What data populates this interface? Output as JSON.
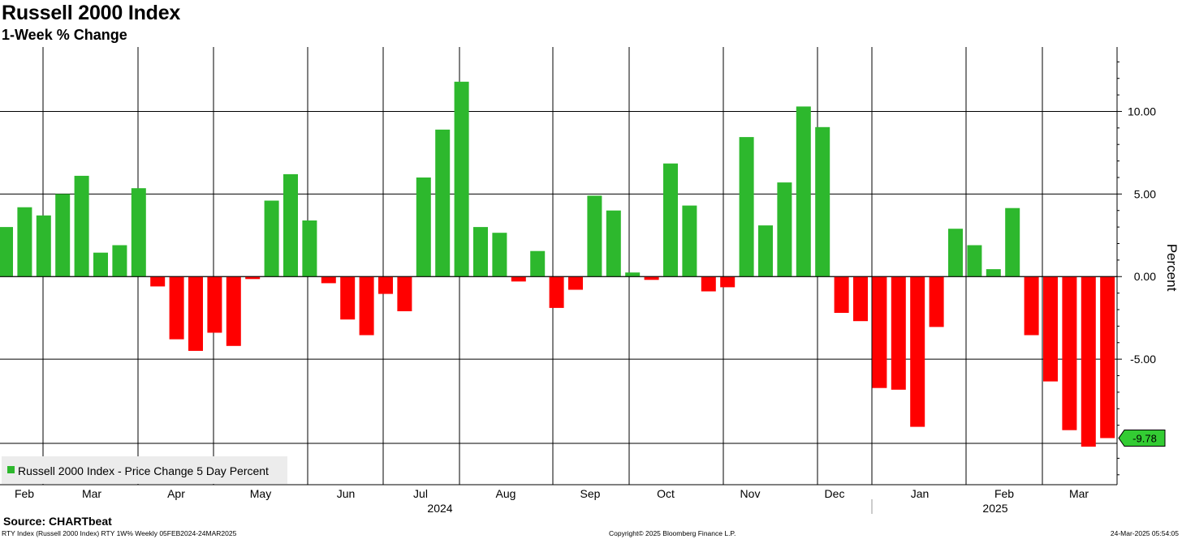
{
  "title": "Russell 2000 Index",
  "subtitle": "1-Week % Change",
  "source": "Source: CHARTbeat",
  "footer": {
    "left": "RTY Index (Russell 2000 Index) RTY 1W% Weekly 05FEB2024-24MAR2025",
    "center": "Copyright© 2025 Bloomberg Finance L.P.",
    "right": "24-Mar-2025 05:54:05"
  },
  "colors": {
    "positive": "#2db82d",
    "negative": "#ff0000",
    "grid": "#000000",
    "last_value_badge": "#33cc33"
  },
  "chart_data": {
    "type": "bar",
    "title": "Russell 2000 Index",
    "subtitle": "1-Week % Change",
    "ylabel": "Percent",
    "ylim": [
      -12.6,
      13.9
    ],
    "y_ticks": [
      10,
      5,
      0,
      -5
    ],
    "y_tick_labels": [
      "10.00",
      "5.00",
      "0.00",
      "-5.00"
    ],
    "grid": true,
    "legend": {
      "position": "bottom-left",
      "entries": [
        "Russell 2000 Index - Price Change 5 Day Percent"
      ]
    },
    "last_value_label": "-9.78",
    "x_month_labels": [
      "Feb",
      "Mar",
      "Apr",
      "May",
      "Jun",
      "Jul",
      "Aug",
      "Sep",
      "Oct",
      "Nov",
      "Dec",
      "Jan",
      "Feb",
      "Mar"
    ],
    "x_year_labels": [
      "2024",
      "2025"
    ],
    "series": [
      {
        "name": "Russell 2000 Index - Price Change 5 Day Percent",
        "x": [
          "2024-02-02",
          "2024-02-09",
          "2024-02-16",
          "2024-02-23",
          "2024-03-01",
          "2024-03-08",
          "2024-03-15",
          "2024-03-22",
          "2024-03-29",
          "2024-04-05",
          "2024-04-12",
          "2024-04-19",
          "2024-04-26",
          "2024-05-03",
          "2024-05-10",
          "2024-05-17",
          "2024-05-24",
          "2024-05-31",
          "2024-06-07",
          "2024-06-14",
          "2024-06-21",
          "2024-06-28",
          "2024-07-05",
          "2024-07-12",
          "2024-07-19",
          "2024-07-26",
          "2024-08-02",
          "2024-08-09",
          "2024-08-16",
          "2024-08-23",
          "2024-08-30",
          "2024-09-06",
          "2024-09-13",
          "2024-09-20",
          "2024-09-27",
          "2024-10-04",
          "2024-10-11",
          "2024-10-18",
          "2024-10-25",
          "2024-11-01",
          "2024-11-08",
          "2024-11-15",
          "2024-11-22",
          "2024-11-29",
          "2024-12-06",
          "2024-12-13",
          "2024-12-20",
          "2024-12-27",
          "2025-01-03",
          "2025-01-10",
          "2025-01-17",
          "2025-01-24",
          "2025-01-31",
          "2025-02-07",
          "2025-02-14",
          "2025-02-21",
          "2025-02-28",
          "2025-03-07",
          "2025-03-14",
          "2025-03-21"
        ],
        "values": [
          3.0,
          4.2,
          3.7,
          5.0,
          6.1,
          1.45,
          1.9,
          5.35,
          -0.6,
          -3.8,
          -4.5,
          -3.4,
          -4.2,
          -0.15,
          4.6,
          6.2,
          3.4,
          -0.4,
          -2.6,
          -3.55,
          -1.05,
          -2.1,
          6.0,
          8.9,
          11.8,
          3.0,
          2.65,
          -0.3,
          1.55,
          -1.9,
          -0.8,
          4.9,
          4.0,
          0.25,
          -0.2,
          6.85,
          4.3,
          -0.9,
          -0.65,
          8.45,
          3.1,
          5.7,
          10.3,
          9.05,
          -2.2,
          -2.7,
          -6.75,
          -6.85,
          -9.1,
          -3.05,
          2.9,
          1.9,
          0.45,
          4.15,
          -3.55,
          -6.35,
          -9.3,
          -10.3,
          -9.78,
          null
        ],
        "value_ticks": [
          2024,
          2024,
          2024,
          2024,
          2024,
          2024,
          2024,
          2024,
          2024,
          2024,
          2024,
          2024,
          2024,
          2024,
          2024,
          2024,
          2024,
          2024,
          2024,
          2024,
          2024,
          2024,
          2024,
          2024,
          2024,
          2024,
          2024,
          2024,
          2024,
          2024,
          2024,
          2024,
          2024,
          2024,
          2024,
          2024,
          2024,
          2024,
          2024,
          2024,
          2024,
          2024,
          2024,
          2024,
          2024,
          2024,
          2024,
          2024,
          2025,
          2025,
          2025,
          2025,
          2025,
          2025,
          2025,
          2025,
          2025,
          2025,
          2025,
          2025
        ]
      }
    ]
  }
}
